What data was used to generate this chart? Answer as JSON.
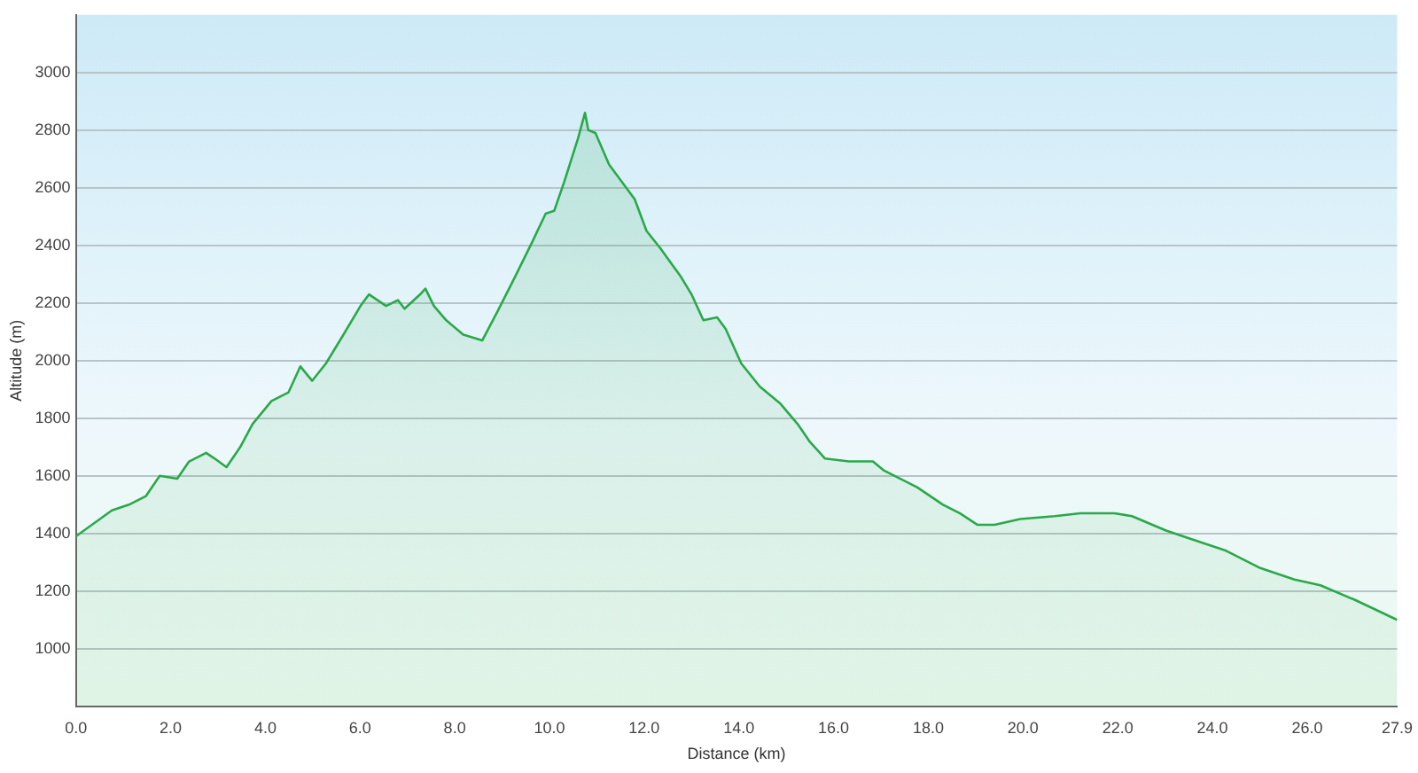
{
  "chart_data": {
    "type": "area",
    "xlabel": "Distance (km)",
    "ylabel": "Altitude (m)",
    "x": [
      0,
      0.76,
      1.12,
      1.48,
      1.77,
      2.14,
      2.39,
      2.75,
      2.93,
      3.18,
      3.47,
      3.73,
      4.13,
      4.49,
      4.74,
      4.99,
      5.28,
      5.65,
      6.01,
      6.19,
      6.55,
      6.8,
      6.94,
      7.27,
      7.38,
      7.56,
      7.82,
      8.18,
      8.58,
      8.9,
      9.27,
      9.63,
      9.92,
      10.1,
      10.31,
      10.6,
      10.75,
      10.82,
      10.97,
      11.26,
      11.62,
      11.8,
      12.05,
      12.34,
      12.78,
      13,
      13.25,
      13.54,
      13.72,
      14.05,
      14.44,
      14.88,
      15.24,
      15.49,
      15.82,
      16.32,
      16.83,
      17.05,
      17.41,
      17.77,
      18.31,
      18.67,
      19.04,
      19.4,
      19.94,
      20.67,
      21.21,
      21.93,
      22.3,
      23.02,
      23.56,
      24.29,
      25.01,
      25.73,
      26.28,
      27,
      27.9
    ],
    "series": [
      {
        "color": "#2aa84a",
        "values": [
          1390,
          1480,
          1500,
          1530,
          1600,
          1590,
          1650,
          1680,
          1660,
          1630,
          1700,
          1780,
          1860,
          1890,
          1980,
          1930,
          1990,
          2090,
          2190,
          2230,
          2190,
          2210,
          2180,
          2230,
          2250,
          2190,
          2140,
          2090,
          2070,
          2170,
          2290,
          2410,
          2510,
          2520,
          2620,
          2770,
          2860,
          2800,
          2790,
          2680,
          2600,
          2560,
          2450,
          2390,
          2290,
          2230,
          2140,
          2150,
          2110,
          1990,
          1910,
          1850,
          1780,
          1720,
          1660,
          1650,
          1650,
          1620,
          1590,
          1560,
          1500,
          1470,
          1430,
          1430,
          1450,
          1460,
          1470,
          1470,
          1460,
          1410,
          1380,
          1340,
          1280,
          1240,
          1220,
          1170,
          1100
        ]
      }
    ],
    "xlim": [
      0,
      27.9
    ],
    "xticks": [
      {
        "value": 0,
        "label": "0.0"
      },
      {
        "value": 2,
        "label": "2.0"
      },
      {
        "value": 4,
        "label": "4.0"
      },
      {
        "value": 6,
        "label": "6.0"
      },
      {
        "value": 8,
        "label": "8.0"
      },
      {
        "value": 10,
        "label": "10.0"
      },
      {
        "value": 12,
        "label": "12.0"
      },
      {
        "value": 14,
        "label": "14.0"
      },
      {
        "value": 16,
        "label": "16.0"
      },
      {
        "value": 18,
        "label": "18.0"
      },
      {
        "value": 20,
        "label": "20.0"
      },
      {
        "value": 22,
        "label": "22.0"
      },
      {
        "value": 24,
        "label": "24.0"
      },
      {
        "value": 26,
        "label": "26.0"
      },
      {
        "value": 27.9,
        "label": "27.9"
      }
    ],
    "ylim": [
      800,
      3200
    ],
    "yticks": [
      1000,
      1200,
      1400,
      1600,
      1800,
      2000,
      2200,
      2400,
      2600,
      2800,
      3000
    ],
    "grid": "y",
    "legend": false,
    "marker": "none",
    "line_style": "solid"
  }
}
